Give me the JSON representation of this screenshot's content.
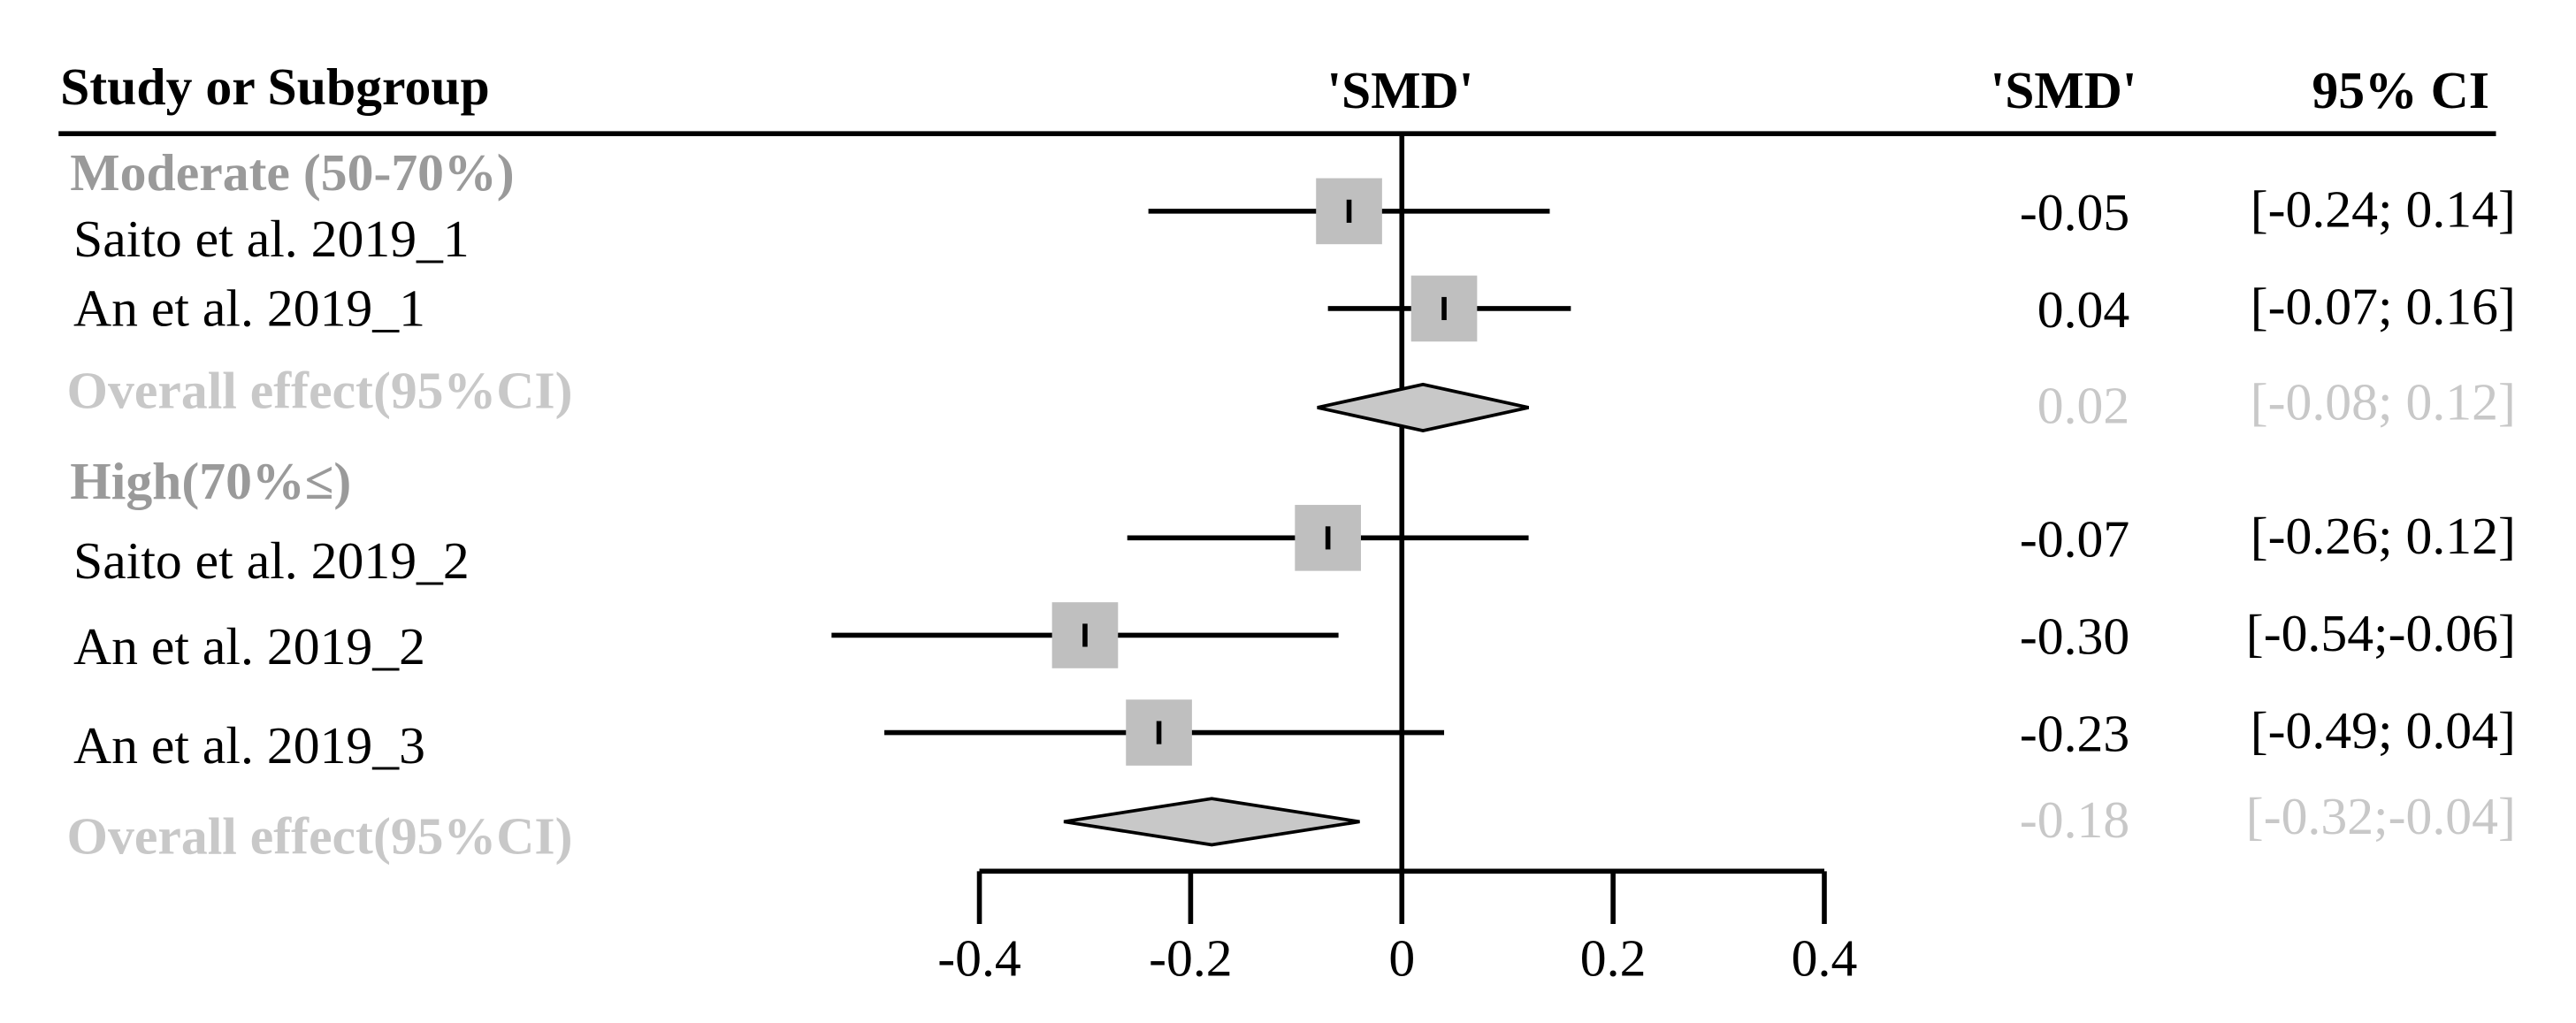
{
  "chart_data": {
    "type": "forest",
    "headers": {
      "study": "Study or Subgroup",
      "plot": "'SMD'",
      "value": "'SMD'",
      "ci": "95% CI"
    },
    "groups": [
      {
        "name": "Moderate (50-70%)",
        "studies": [
          {
            "name": "Saito et al. 2019_1",
            "value": -0.05,
            "value_label": "-0.05",
            "ci": [
              -0.24,
              0.14
            ],
            "ci_label": "[-0.24; 0.14]"
          },
          {
            "name": "An et al. 2019_1",
            "value": 0.04,
            "value_label": "0.04",
            "ci": [
              -0.07,
              0.16
            ],
            "ci_label": "[-0.07; 0.16]"
          }
        ],
        "overall": {
          "name": "Overall effect(95%CI)",
          "value": 0.02,
          "value_label": "0.02",
          "ci": [
            -0.08,
            0.12
          ],
          "ci_label": "[-0.08; 0.12]"
        }
      },
      {
        "name": "High(70%≤)",
        "studies": [
          {
            "name": "Saito et al. 2019_2",
            "value": -0.07,
            "value_label": "-0.07",
            "ci": [
              -0.26,
              0.12
            ],
            "ci_label": "[-0.26; 0.12]"
          },
          {
            "name": "An et al. 2019_2",
            "value": -0.3,
            "value_label": "-0.30",
            "ci": [
              -0.54,
              -0.06
            ],
            "ci_label": "[-0.54;-0.06]"
          },
          {
            "name": "An et al. 2019_3",
            "value": -0.23,
            "value_label": "-0.23",
            "ci": [
              -0.49,
              0.04
            ],
            "ci_label": "[-0.49; 0.04]"
          }
        ],
        "overall": {
          "name": "Overall effect(95%CI)",
          "value": -0.18,
          "value_label": "-0.18",
          "ci": [
            -0.32,
            -0.04
          ],
          "ci_label": "[-0.32;-0.04]"
        }
      }
    ],
    "xlim": [
      -0.4,
      0.4
    ],
    "xticks": [
      -0.4,
      -0.2,
      0,
      0.2,
      0.4
    ]
  }
}
